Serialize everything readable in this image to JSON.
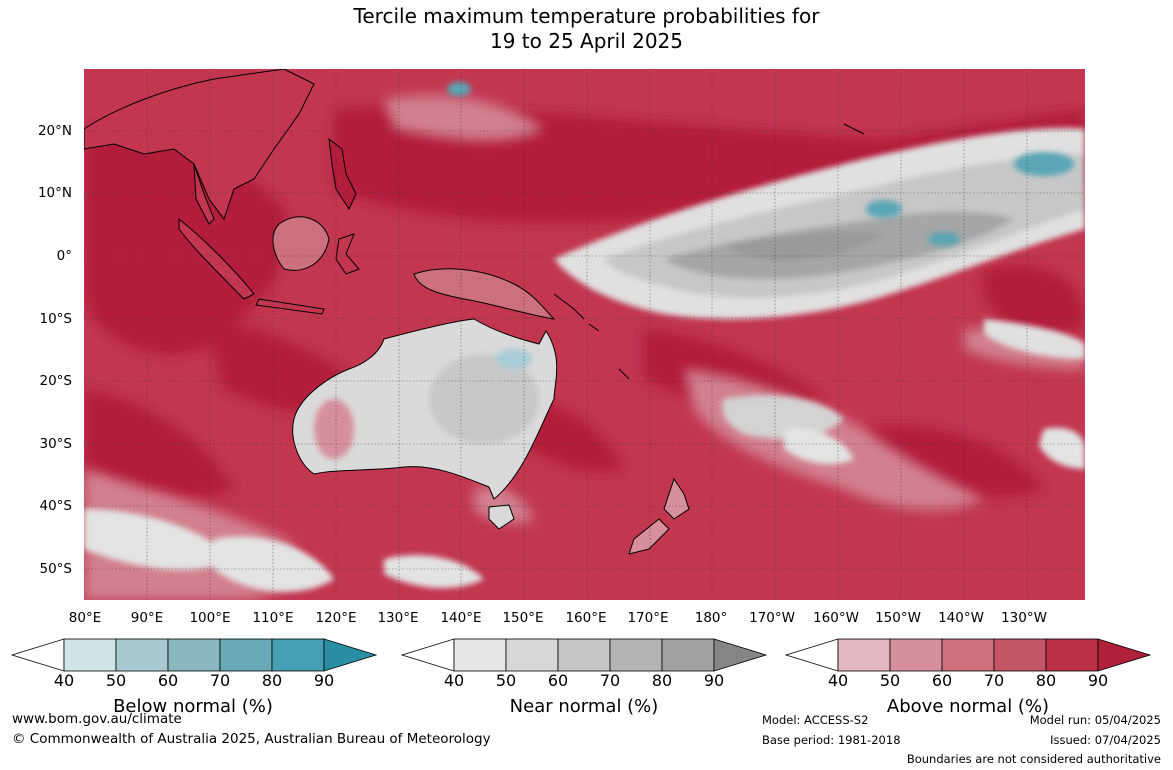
{
  "title_line1": "Tercile maximum temperature probabilities for",
  "title_line2": "19 to 25 April 2025",
  "lat_labels": [
    "20°N",
    "10°N",
    "0°",
    "10°S",
    "20°S",
    "30°S",
    "40°S",
    "50°S"
  ],
  "lon_labels": [
    "80°E",
    "90°E",
    "100°E",
    "110°E",
    "120°E",
    "130°E",
    "140°E",
    "150°E",
    "160°E",
    "170°E",
    "180°",
    "170°W",
    "160°W",
    "150°W",
    "140°W",
    "130°W"
  ],
  "colorbars": [
    {
      "label": "Below normal (%)",
      "ticks": [
        "40",
        "50",
        "60",
        "70",
        "80",
        "90"
      ],
      "colors": [
        "#ffffff",
        "#cfe3e9",
        "#a7c9cf",
        "#89b7bf",
        "#67a9b6",
        "#45a0b3",
        "#2a8fa4"
      ]
    },
    {
      "label": "Near normal (%)",
      "ticks": [
        "40",
        "50",
        "60",
        "70",
        "80",
        "90"
      ],
      "colors": [
        "#ffffff",
        "#e6e6e6",
        "#d7d7d7",
        "#c6c6c6",
        "#b4b4b4",
        "#a2a2a2",
        "#858585"
      ]
    },
    {
      "label": "Above normal (%)",
      "ticks": [
        "40",
        "50",
        "60",
        "70",
        "80",
        "90"
      ],
      "colors": [
        "#ffffff",
        "#e3b7bf",
        "#d78f9b",
        "#cd707e",
        "#c45668",
        "#bb3047",
        "#b0203b"
      ]
    }
  ],
  "footer": {
    "website": "www.bom.gov.au/climate",
    "copyright": "© Commonwealth of Australia 2025, Australian Bureau of Meteorology",
    "model": "Model: ACCESS-S2",
    "base_period": "Base period: 1981-2018",
    "model_run": "Model run: 05/04/2025",
    "issued": "Issued: 07/04/2025",
    "disclaimer": "Boundaries are not considered authoritative"
  }
}
